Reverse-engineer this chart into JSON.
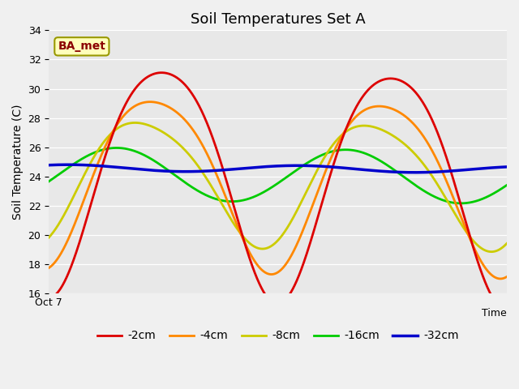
{
  "title": "Soil Temperatures Set A",
  "ylabel": "Soil Temperature (C)",
  "ylim": [
    16,
    34
  ],
  "yticks": [
    16,
    18,
    20,
    22,
    24,
    26,
    28,
    30,
    32,
    34
  ],
  "xlim": [
    0,
    1
  ],
  "x_label_left": "Oct 7",
  "x_label_right": "Time",
  "annotation_text": "BA_met",
  "colors": {
    "-2cm": "#dd0000",
    "-4cm": "#ff8800",
    "-8cm": "#cccc00",
    "-16cm": "#00cc00",
    "-32cm": "#0000cc"
  },
  "line_widths": {
    "-2cm": 2.0,
    "-4cm": 2.0,
    "-8cm": 2.0,
    "-16cm": 2.0,
    "-32cm": 2.5
  },
  "plot_bg_color": "#e8e8e8",
  "fig_bg_color": "#f0f0f0",
  "grid_color": "#ffffff",
  "title_fontsize": 13,
  "axis_label_fontsize": 10,
  "tick_fontsize": 9,
  "legend_fontsize": 10,
  "wave": {
    "N": 2000,
    "red_base": 24.5,
    "red_amp1": 7.8,
    "red_amp2": 1.0,
    "red_freq": 2.0,
    "red_phase": -1.55,
    "red_trend": -0.8,
    "orange_base": 24.2,
    "orange_amp1": 5.8,
    "orange_amp2": 0.8,
    "orange_freq": 2.0,
    "orange_phase": -1.35,
    "orange_trend": -0.6,
    "yellow_base": 24.0,
    "yellow_amp1": 4.2,
    "yellow_amp2": 0.6,
    "yellow_freq": 2.0,
    "yellow_phase": -1.05,
    "yellow_trend": -0.4,
    "green_base": 24.2,
    "green_amp1": 1.8,
    "green_freq": 2.0,
    "green_phase": -0.3,
    "green_trend": -0.25,
    "blue_base": 24.6,
    "blue_amp1": 0.22,
    "blue_freq": 2.0,
    "blue_phase": 1.0,
    "blue_trend": -0.12
  }
}
